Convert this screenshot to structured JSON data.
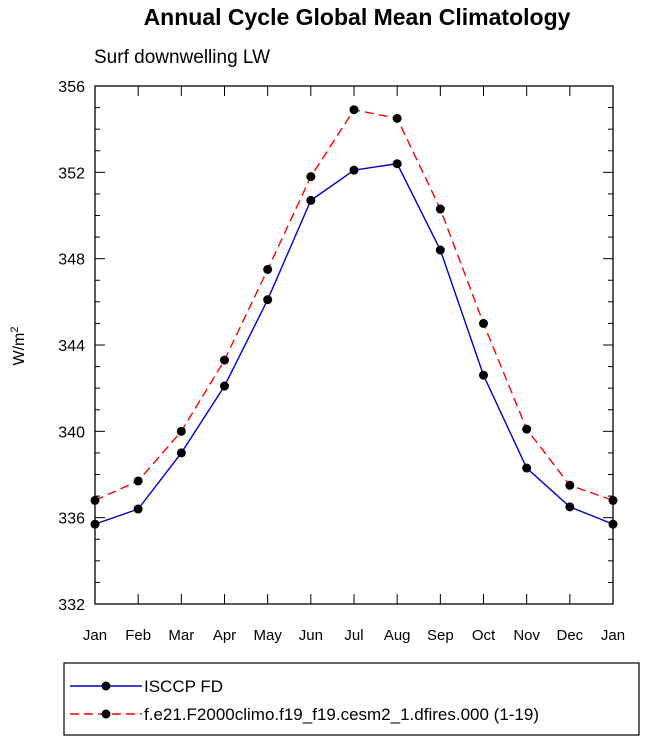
{
  "chart_data": {
    "type": "line",
    "title": "Annual Cycle Global Mean Climatology",
    "subtitle": "Surf downwelling LW",
    "ylabel": "W/m",
    "ylabel_sup": "2",
    "xlabel": "",
    "ylim": [
      332,
      356
    ],
    "yticks": [
      "332",
      "336",
      "340",
      "344",
      "348",
      "352",
      "356"
    ],
    "categories": [
      "Jan",
      "Feb",
      "Mar",
      "Apr",
      "May",
      "Jun",
      "Jul",
      "Aug",
      "Sep",
      "Oct",
      "Nov",
      "Dec",
      "Jan"
    ],
    "series": [
      {
        "name": "ISCCP FD",
        "color": "#0000cc",
        "dash": "solid",
        "values": [
          335.7,
          336.4,
          339.0,
          342.1,
          346.1,
          350.7,
          352.1,
          352.4,
          348.4,
          342.6,
          338.3,
          336.5,
          335.7
        ]
      },
      {
        "name": "f.e21.F2000climo.f19_f19.cesm2_1.dfires.000 (1-19)",
        "color": "#ff0000",
        "dash": "dashed",
        "values": [
          336.8,
          337.7,
          340.0,
          343.3,
          347.5,
          351.8,
          354.9,
          354.5,
          350.3,
          345.0,
          340.1,
          337.5,
          336.8
        ]
      }
    ],
    "legend_position": "bottom"
  }
}
